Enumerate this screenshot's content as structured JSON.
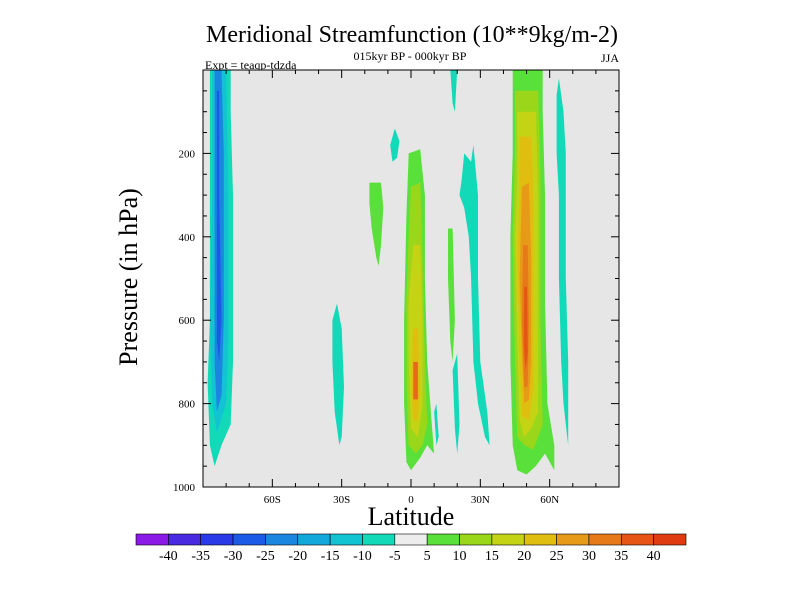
{
  "chart_data": {
    "type": "heatmap",
    "title": "Meridional Streamfunction (10**9kg/m-2)",
    "subtitle": "015kyr BP - 000kyr BP",
    "left_label": "Expt = teaqp-tdzda",
    "right_label": "JJA",
    "xlabel": "Latitude",
    "ylabel": "Pressure (in hPa)",
    "xlim": [
      -90,
      90
    ],
    "ylim": [
      0,
      1000
    ],
    "y_inverted": true,
    "x_ticks": [
      {
        "value": -60,
        "label": "60S"
      },
      {
        "value": -30,
        "label": "30S"
      },
      {
        "value": 0,
        "label": "0"
      },
      {
        "value": 30,
        "label": "30N"
      },
      {
        "value": 60,
        "label": "60N"
      }
    ],
    "y_ticks": [
      {
        "value": 200,
        "label": "200"
      },
      {
        "value": 400,
        "label": "400"
      },
      {
        "value": 600,
        "label": "600"
      },
      {
        "value": 800,
        "label": "800"
      },
      {
        "value": 1000,
        "label": "1000"
      }
    ],
    "background_color": "#e6e6e6",
    "colorbar": {
      "labels": [
        "-40",
        "-35",
        "-30",
        "-25",
        "-20",
        "-15",
        "-10",
        "-5",
        "5",
        "10",
        "15",
        "20",
        "25",
        "30",
        "35",
        "40"
      ],
      "colors": [
        "#8b1ae6",
        "#4a2ae0",
        "#2a3ae6",
        "#1a5ae6",
        "#1a86e0",
        "#12a8dc",
        "#12c3d2",
        "#12dab8",
        "#ededed",
        "#5ae03a",
        "#9ad61a",
        "#c4d414",
        "#e0be10",
        "#e69a18",
        "#e67a18",
        "#e65416",
        "#e03c12"
      ]
    },
    "contour_fill_regions": [
      {
        "level": "-10",
        "color": "#12dab8",
        "path": [
          [
            -87,
            0
          ],
          [
            -78,
            0
          ],
          [
            -78,
            100
          ],
          [
            -77,
            300
          ],
          [
            -77,
            700
          ],
          [
            -78,
            850
          ],
          [
            -82,
            900
          ],
          [
            -85,
            950
          ],
          [
            -87,
            900
          ],
          [
            -88,
            750
          ],
          [
            -87,
            600
          ],
          [
            -87,
            300
          ]
        ]
      },
      {
        "level": "-15",
        "color": "#12c3d2",
        "path": [
          [
            -86,
            0
          ],
          [
            -80,
            0
          ],
          [
            -79,
            300
          ],
          [
            -79,
            650
          ],
          [
            -80,
            800
          ],
          [
            -84,
            870
          ],
          [
            -86,
            800
          ],
          [
            -87,
            600
          ],
          [
            -86,
            300
          ]
        ]
      },
      {
        "level": "-20",
        "color": "#1a86e0",
        "path": [
          [
            -85,
            0
          ],
          [
            -82,
            0
          ],
          [
            -81,
            200
          ],
          [
            -81,
            600
          ],
          [
            -82,
            780
          ],
          [
            -84,
            820
          ],
          [
            -85,
            700
          ],
          [
            -85,
            300
          ]
        ]
      },
      {
        "level": "-25",
        "color": "#1a5ae6",
        "path": [
          [
            -84,
            50
          ],
          [
            -83,
            50
          ],
          [
            -83,
            300
          ],
          [
            -82,
            600
          ],
          [
            -83,
            700
          ],
          [
            -84,
            650
          ],
          [
            -84,
            300
          ]
        ]
      },
      {
        "level": "-10",
        "color": "#12dab8",
        "path": [
          [
            -34,
            600
          ],
          [
            -32,
            560
          ],
          [
            -30,
            620
          ],
          [
            -29,
            760
          ],
          [
            -30,
            880
          ],
          [
            -31,
            900
          ],
          [
            -33,
            820
          ],
          [
            -34,
            700
          ]
        ]
      },
      {
        "level": "5",
        "color": "#5ae03a",
        "path": [
          [
            -18,
            270
          ],
          [
            -13,
            270
          ],
          [
            -12,
            330
          ],
          [
            -13,
            420
          ],
          [
            -14,
            470
          ],
          [
            -15,
            450
          ],
          [
            -17,
            380
          ],
          [
            -18,
            320
          ]
        ]
      },
      {
        "level": "-10",
        "color": "#12dab8",
        "path": [
          [
            -9,
            180
          ],
          [
            -7,
            140
          ],
          [
            -5,
            170
          ],
          [
            -6,
            210
          ],
          [
            -8,
            220
          ]
        ]
      },
      {
        "level": "5",
        "color": "#5ae03a",
        "path": [
          [
            -1,
            200
          ],
          [
            4,
            190
          ],
          [
            6,
            300
          ],
          [
            6,
            500
          ],
          [
            7,
            700
          ],
          [
            9,
            850
          ],
          [
            10,
            920
          ],
          [
            7,
            900
          ],
          [
            4,
            930
          ],
          [
            0,
            960
          ],
          [
            -2,
            940
          ],
          [
            -3,
            800
          ],
          [
            -3,
            600
          ],
          [
            -2,
            350
          ]
        ]
      },
      {
        "level": "10",
        "color": "#9ad61a",
        "path": [
          [
            0,
            280
          ],
          [
            4,
            270
          ],
          [
            5,
            450
          ],
          [
            6,
            700
          ],
          [
            7,
            850
          ],
          [
            5,
            900
          ],
          [
            2,
            920
          ],
          [
            -1,
            900
          ],
          [
            -2,
            750
          ],
          [
            -2,
            550
          ],
          [
            -1,
            400
          ]
        ]
      },
      {
        "level": "15",
        "color": "#c4d414",
        "path": [
          [
            1,
            420
          ],
          [
            4,
            420
          ],
          [
            5,
            600
          ],
          [
            5,
            800
          ],
          [
            3,
            880
          ],
          [
            0,
            860
          ],
          [
            -1,
            700
          ],
          [
            -1,
            550
          ]
        ]
      },
      {
        "level": "20",
        "color": "#e0be10",
        "path": [
          [
            1,
            620
          ],
          [
            3,
            620
          ],
          [
            4,
            760
          ],
          [
            3,
            840
          ],
          [
            1,
            840
          ],
          [
            0,
            760
          ]
        ]
      },
      {
        "level": "30",
        "color": "#e66a18",
        "path": [
          [
            1,
            700
          ],
          [
            3,
            700
          ],
          [
            3,
            790
          ],
          [
            1,
            790
          ]
        ]
      },
      {
        "level": "-10",
        "color": "#12dab8",
        "path": [
          [
            17,
            0
          ],
          [
            20,
            0
          ],
          [
            19,
            100
          ],
          [
            18,
            80
          ]
        ]
      },
      {
        "level": "5",
        "color": "#5ae03a",
        "path": [
          [
            16,
            380
          ],
          [
            18,
            380
          ],
          [
            19,
            600
          ],
          [
            18,
            700
          ],
          [
            17,
            650
          ],
          [
            16,
            500
          ]
        ]
      },
      {
        "level": "-10",
        "color": "#12dab8",
        "path": [
          [
            21,
            300
          ],
          [
            22,
            260
          ],
          [
            23,
            200
          ],
          [
            26,
            220
          ],
          [
            27,
            180
          ],
          [
            29,
            300
          ],
          [
            29,
            500
          ],
          [
            30,
            700
          ],
          [
            33,
            820
          ],
          [
            34,
            900
          ],
          [
            32,
            880
          ],
          [
            29,
            800
          ],
          [
            27,
            700
          ],
          [
            26,
            500
          ],
          [
            25,
            400
          ],
          [
            23,
            330
          ]
        ]
      },
      {
        "level": "-10",
        "color": "#12dab8",
        "path": [
          [
            18,
            720
          ],
          [
            20,
            680
          ],
          [
            21,
            850
          ],
          [
            20,
            920
          ],
          [
            19,
            860
          ]
        ]
      },
      {
        "level": "-10",
        "color": "#12dab8",
        "path": [
          [
            10,
            820
          ],
          [
            11,
            800
          ],
          [
            12,
            880
          ],
          [
            11,
            900
          ]
        ]
      },
      {
        "level": "5",
        "color": "#5ae03a",
        "path": [
          [
            44,
            0
          ],
          [
            57,
            0
          ],
          [
            57,
            100
          ],
          [
            58,
            300
          ],
          [
            58,
            550
          ],
          [
            59,
            800
          ],
          [
            62,
            900
          ],
          [
            62,
            960
          ],
          [
            58,
            920
          ],
          [
            54,
            950
          ],
          [
            50,
            970
          ],
          [
            46,
            960
          ],
          [
            44,
            900
          ],
          [
            43,
            700
          ],
          [
            43,
            400
          ],
          [
            44,
            200
          ]
        ]
      },
      {
        "level": "10",
        "color": "#9ad61a",
        "path": [
          [
            45,
            50
          ],
          [
            55,
            50
          ],
          [
            56,
            250
          ],
          [
            56,
            600
          ],
          [
            57,
            850
          ],
          [
            53,
            910
          ],
          [
            49,
            900
          ],
          [
            46,
            880
          ],
          [
            45,
            700
          ],
          [
            44,
            400
          ],
          [
            45,
            200
          ]
        ]
      },
      {
        "level": "15",
        "color": "#c4d414",
        "path": [
          [
            46,
            100
          ],
          [
            54,
            100
          ],
          [
            55,
            300
          ],
          [
            55,
            650
          ],
          [
            55,
            820
          ],
          [
            52,
            860
          ],
          [
            49,
            880
          ],
          [
            47,
            840
          ],
          [
            46,
            650
          ],
          [
            45,
            400
          ],
          [
            46,
            250
          ]
        ]
      },
      {
        "level": "20",
        "color": "#e0be10",
        "path": [
          [
            47,
            160
          ],
          [
            52,
            160
          ],
          [
            53,
            300
          ],
          [
            53,
            600
          ],
          [
            53,
            760
          ],
          [
            51,
            840
          ],
          [
            48,
            830
          ],
          [
            47,
            700
          ],
          [
            46,
            450
          ],
          [
            47,
            300
          ]
        ]
      },
      {
        "level": "25",
        "color": "#e69a18",
        "path": [
          [
            48,
            280
          ],
          [
            51,
            270
          ],
          [
            52,
            450
          ],
          [
            52,
            700
          ],
          [
            51,
            790
          ],
          [
            49,
            800
          ],
          [
            48,
            680
          ],
          [
            47,
            500
          ]
        ]
      },
      {
        "level": "30",
        "color": "#e67a18",
        "path": [
          [
            48.5,
            420
          ],
          [
            50.5,
            420
          ],
          [
            51,
            600
          ],
          [
            50.5,
            760
          ],
          [
            49,
            760
          ],
          [
            48,
            600
          ]
        ]
      },
      {
        "level": "35",
        "color": "#e65416",
        "path": [
          [
            49,
            520
          ],
          [
            50.2,
            520
          ],
          [
            50.5,
            680
          ],
          [
            49.5,
            720
          ],
          [
            48.8,
            650
          ]
        ]
      },
      {
        "level": "-10",
        "color": "#12dab8",
        "path": [
          [
            63,
            60
          ],
          [
            64,
            20
          ],
          [
            66,
            100
          ],
          [
            67,
            200
          ],
          [
            67,
            500
          ],
          [
            68,
            700
          ],
          [
            68,
            900
          ],
          [
            67,
            850
          ],
          [
            66,
            800
          ],
          [
            65,
            700
          ],
          [
            64,
            500
          ],
          [
            64,
            300
          ],
          [
            63,
            200
          ]
        ]
      }
    ]
  }
}
